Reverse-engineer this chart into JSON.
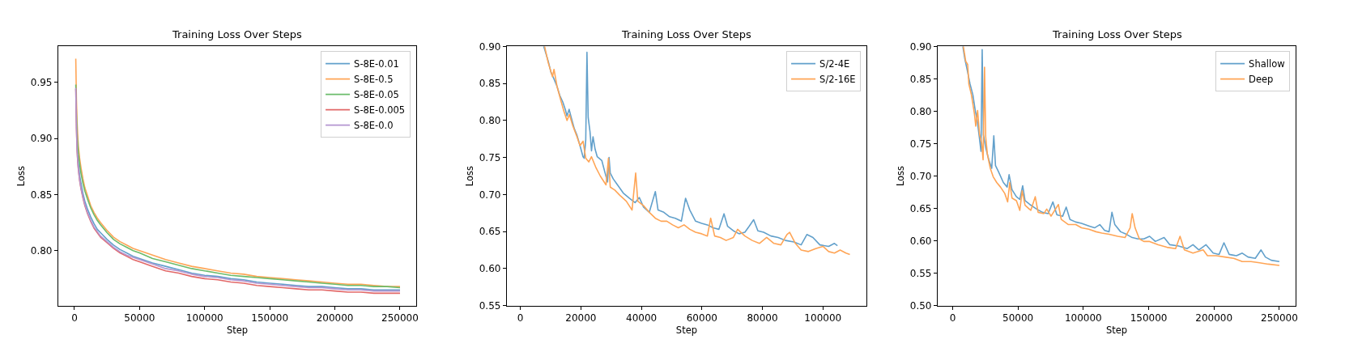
{
  "chart_data": [
    {
      "type": "line",
      "title": "Training Loss Over Steps",
      "xlabel": "Step",
      "ylabel": "Loss",
      "legend": "top right",
      "xlim": [
        -12500,
        262500
      ],
      "ylim": [
        0.751,
        0.982
      ],
      "xticks": [
        0,
        50000,
        100000,
        150000,
        200000,
        250000
      ],
      "yticks": [
        {
          "value": 0.8,
          "label": "0.80"
        },
        0.85,
        {
          "value": 0.9,
          "label": "0.90"
        },
        0.95
      ],
      "x": [
        1000,
        1500,
        2000,
        2500,
        3000,
        4000,
        5000,
        6500,
        8000,
        10000,
        12500,
        15000,
        17500,
        20000,
        25000,
        30000,
        35000,
        40000,
        45000,
        50000,
        60000,
        70000,
        80000,
        90000,
        100000,
        110000,
        120000,
        130000,
        140000,
        150000,
        160000,
        170000,
        180000,
        190000,
        200000,
        210000,
        220000,
        230000,
        240000,
        250000
      ],
      "series": [
        {
          "name": "S-8E-0.01",
          "color": "#62a0cb",
          "values": [
            null,
            null,
            null,
            0.885,
            0.878,
            0.867,
            0.86,
            0.851,
            0.844,
            0.837,
            0.83,
            0.824,
            0.819,
            0.816,
            0.81,
            0.805,
            0.801,
            0.798,
            0.795,
            0.793,
            0.789,
            0.786,
            0.783,
            0.78,
            0.778,
            0.777,
            0.775,
            0.774,
            0.772,
            0.771,
            0.77,
            0.769,
            0.768,
            0.768,
            0.767,
            0.766,
            0.766,
            0.765,
            0.765,
            0.765
          ]
        },
        {
          "name": "S-8E-0.5",
          "color": "#ffa556",
          "values": [
            0.971,
            0.935,
            0.915,
            0.902,
            0.893,
            0.882,
            0.874,
            0.864,
            0.856,
            0.849,
            0.84,
            0.834,
            0.829,
            0.825,
            0.818,
            0.812,
            0.808,
            0.805,
            0.802,
            0.8,
            0.796,
            0.792,
            0.789,
            0.786,
            0.784,
            0.782,
            0.78,
            0.779,
            0.777,
            0.776,
            0.775,
            0.774,
            0.773,
            0.772,
            0.771,
            0.77,
            0.77,
            0.769,
            0.768,
            0.768
          ]
        },
        {
          "name": "S-8E-0.05",
          "color": "#6bbc6b",
          "values": [
            0.948,
            0.922,
            0.905,
            0.895,
            0.887,
            0.877,
            0.869,
            0.86,
            0.853,
            0.846,
            0.838,
            0.832,
            0.827,
            0.823,
            0.816,
            0.81,
            0.806,
            0.803,
            0.8,
            0.798,
            0.793,
            0.79,
            0.787,
            0.784,
            0.782,
            0.78,
            0.778,
            0.777,
            0.776,
            0.775,
            0.774,
            0.773,
            0.772,
            0.771,
            0.77,
            0.769,
            0.769,
            0.768,
            0.768,
            0.767
          ]
        },
        {
          "name": "S-8E-0.005",
          "color": "#e26868",
          "values": [
            0.944,
            0.909,
            0.889,
            0.879,
            0.872,
            0.862,
            0.855,
            0.847,
            0.84,
            0.833,
            0.826,
            0.82,
            0.816,
            0.812,
            0.807,
            0.802,
            0.798,
            0.795,
            0.792,
            0.79,
            0.786,
            0.782,
            0.78,
            0.777,
            0.775,
            0.774,
            0.772,
            0.771,
            0.769,
            0.768,
            0.767,
            0.766,
            0.765,
            0.765,
            0.764,
            0.763,
            0.763,
            0.762,
            0.762,
            0.762
          ]
        },
        {
          "name": "S-8E-0.0",
          "color": "#b495d1",
          "values": [
            0.945,
            0.91,
            0.89,
            0.88,
            0.873,
            0.863,
            0.856,
            0.848,
            0.841,
            0.834,
            0.827,
            0.821,
            0.817,
            0.813,
            0.808,
            0.803,
            0.799,
            0.796,
            0.794,
            0.792,
            0.788,
            0.784,
            0.782,
            0.779,
            0.777,
            0.776,
            0.774,
            0.773,
            0.771,
            0.77,
            0.769,
            0.768,
            0.767,
            0.767,
            0.766,
            0.765,
            0.765,
            0.764,
            0.764,
            0.764
          ]
        }
      ]
    },
    {
      "type": "line",
      "title": "Training Loss Over Steps",
      "xlabel": "Step",
      "ylabel": "Loss",
      "legend": "top right",
      "xlim": [
        -4500,
        114400
      ],
      "ylim": [
        0.55,
        0.9
      ],
      "xticks": [
        0,
        20000,
        40000,
        60000,
        80000,
        100000
      ],
      "yticks": [
        0.55,
        {
          "value": 0.6,
          "label": "0.60"
        },
        0.65,
        {
          "value": 0.7,
          "label": "0.70"
        },
        0.75,
        {
          "value": 0.8,
          "label": "0.80"
        },
        0.85,
        {
          "value": 0.9,
          "label": "0.90"
        }
      ],
      "series": [
        {
          "name": "S/2-4E",
          "color": "#62a0cb",
          "x": [
            7700,
            9200,
            10100,
            11100,
            12100,
            13000,
            14000,
            14900,
            15400,
            16100,
            16800,
            17800,
            18700,
            19700,
            20700,
            21100,
            21600,
            22000,
            22400,
            23000,
            23500,
            24000,
            24700,
            25400,
            26900,
            27800,
            28800,
            29300,
            29700,
            30700,
            32100,
            34000,
            36000,
            37900,
            39300,
            40700,
            42600,
            44600,
            45500,
            47400,
            49300,
            51200,
            53200,
            54600,
            56000,
            57900,
            59900,
            61800,
            63700,
            65600,
            67300,
            68500,
            70400,
            72300,
            74200,
            75600,
            77100,
            78500,
            80400,
            82800,
            85200,
            87600,
            90400,
            92800,
            94700,
            96700,
            99000,
            101900,
            103800,
            104800
          ],
          "values": [
            0.9,
            0.88,
            0.865,
            0.856,
            0.846,
            0.834,
            0.825,
            0.814,
            0.806,
            0.815,
            0.804,
            0.789,
            0.78,
            0.766,
            0.751,
            0.749,
            0.774,
            0.892,
            0.804,
            0.785,
            0.759,
            0.778,
            0.761,
            0.751,
            0.746,
            0.732,
            0.717,
            0.75,
            0.729,
            0.721,
            0.713,
            0.702,
            0.695,
            0.689,
            0.696,
            0.683,
            0.676,
            0.704,
            0.679,
            0.676,
            0.67,
            0.668,
            0.664,
            0.695,
            0.679,
            0.664,
            0.661,
            0.659,
            0.655,
            0.653,
            0.674,
            0.657,
            0.651,
            0.647,
            0.649,
            0.657,
            0.666,
            0.651,
            0.649,
            0.644,
            0.642,
            0.638,
            0.636,
            0.632,
            0.646,
            0.642,
            0.632,
            0.63,
            0.634,
            0.631
          ]
        },
        {
          "name": "S/2-16E",
          "color": "#ffa556",
          "x": [
            8000,
            9200,
            10600,
            11100,
            12100,
            13500,
            14400,
            15400,
            16200,
            17300,
            18700,
            19700,
            20700,
            21600,
            22600,
            23500,
            25000,
            26400,
            28300,
            29100,
            29700,
            31200,
            33100,
            35000,
            36900,
            38100,
            38800,
            40700,
            42600,
            44600,
            46500,
            48400,
            50300,
            52200,
            54100,
            56000,
            57900,
            59900,
            61800,
            62900,
            64200,
            66100,
            68000,
            70400,
            71800,
            74200,
            76600,
            79000,
            81400,
            83800,
            86100,
            88100,
            89000,
            90900,
            92800,
            95200,
            97600,
            100000,
            101900,
            103800,
            105700,
            107600,
            108900
          ],
          "values": [
            0.9,
            0.878,
            0.859,
            0.869,
            0.846,
            0.825,
            0.812,
            0.8,
            0.808,
            0.793,
            0.778,
            0.766,
            0.772,
            0.749,
            0.744,
            0.751,
            0.736,
            0.725,
            0.713,
            0.749,
            0.71,
            0.706,
            0.698,
            0.691,
            0.679,
            0.729,
            0.691,
            0.685,
            0.676,
            0.668,
            0.664,
            0.664,
            0.659,
            0.655,
            0.659,
            0.653,
            0.649,
            0.647,
            0.644,
            0.668,
            0.644,
            0.642,
            0.638,
            0.642,
            0.653,
            0.644,
            0.638,
            0.634,
            0.642,
            0.634,
            0.632,
            0.646,
            0.649,
            0.634,
            0.625,
            0.623,
            0.627,
            0.63,
            0.623,
            0.621,
            0.625,
            0.621,
            0.619
          ]
        }
      ]
    },
    {
      "type": "line",
      "title": "Training Loss Over Steps",
      "xlabel": "Step",
      "ylabel": "Loss",
      "legend": "top right",
      "xlim": [
        -11500,
        262500
      ],
      "ylim": [
        0.5,
        0.9
      ],
      "xticks": [
        0,
        50000,
        100000,
        150000,
        200000,
        250000
      ],
      "yticks": [
        {
          "value": 0.5,
          "label": "0.50"
        },
        0.55,
        {
          "value": 0.6,
          "label": "0.60"
        },
        0.65,
        {
          "value": 0.7,
          "label": "0.70"
        },
        0.75,
        {
          "value": 0.8,
          "label": "0.80"
        },
        0.85,
        {
          "value": 0.9,
          "label": "0.90"
        }
      ],
      "series": [
        {
          "name": "Shallow",
          "color": "#62a0cb",
          "x": [
            7800,
            9300,
            11100,
            13300,
            15500,
            17300,
            18800,
            20400,
            21700,
            22600,
            23500,
            25500,
            27700,
            29900,
            31500,
            32800,
            35000,
            38800,
            41700,
            43200,
            45400,
            48800,
            51400,
            53600,
            55400,
            59800,
            64300,
            68700,
            73100,
            76700,
            79800,
            84200,
            86900,
            89800,
            94200,
            98600,
            104200,
            108600,
            112600,
            116300,
            119700,
            121900,
            124100,
            128500,
            133000,
            137400,
            141800,
            146300,
            150700,
            155100,
            161800,
            166200,
            172900,
            179500,
            183900,
            188400,
            193900,
            199400,
            203900,
            207600,
            211600,
            217200,
            221600,
            226000,
            231600,
            236000,
            239300,
            243800,
            250000
          ],
          "values": [
            0.9,
            0.881,
            0.864,
            0.842,
            0.825,
            0.801,
            0.786,
            0.76,
            0.738,
            0.895,
            0.764,
            0.742,
            0.725,
            0.712,
            0.762,
            0.716,
            0.707,
            0.69,
            0.683,
            0.702,
            0.679,
            0.668,
            0.664,
            0.685,
            0.662,
            0.655,
            0.649,
            0.644,
            0.642,
            0.66,
            0.64,
            0.638,
            0.652,
            0.633,
            0.629,
            0.627,
            0.623,
            0.62,
            0.625,
            0.616,
            0.614,
            0.644,
            0.625,
            0.614,
            0.61,
            0.605,
            0.603,
            0.603,
            0.607,
            0.599,
            0.605,
            0.594,
            0.592,
            0.588,
            0.594,
            0.586,
            0.594,
            0.581,
            0.579,
            0.597,
            0.579,
            0.577,
            0.581,
            0.575,
            0.573,
            0.586,
            0.575,
            0.57,
            0.568
          ]
        },
        {
          "name": "Deep",
          "color": "#ffa556",
          "x": [
            8200,
            10000,
            11500,
            12400,
            14400,
            16600,
            17700,
            19100,
            20600,
            22200,
            23300,
            24400,
            25300,
            26600,
            28800,
            31000,
            33700,
            36600,
            39900,
            42100,
            43700,
            45400,
            48800,
            51400,
            53200,
            55400,
            59800,
            63200,
            65400,
            69800,
            72000,
            75300,
            80900,
            83100,
            88600,
            94200,
            98600,
            104200,
            109700,
            114100,
            119700,
            126300,
            131900,
            135800,
            137400,
            139600,
            142900,
            146300,
            150700,
            157300,
            164000,
            170600,
            174000,
            177300,
            183900,
            191700,
            195000,
            201700,
            208300,
            215000,
            221600,
            228300,
            234900,
            241500,
            250000
          ],
          "values": [
            0.9,
            0.877,
            0.872,
            0.842,
            0.825,
            0.797,
            0.777,
            0.801,
            0.764,
            0.751,
            0.725,
            0.868,
            0.76,
            0.733,
            0.712,
            0.699,
            0.69,
            0.683,
            0.673,
            0.66,
            0.69,
            0.666,
            0.662,
            0.647,
            0.677,
            0.655,
            0.647,
            0.668,
            0.644,
            0.642,
            0.649,
            0.638,
            0.656,
            0.633,
            0.625,
            0.625,
            0.62,
            0.618,
            0.614,
            0.612,
            0.61,
            0.607,
            0.605,
            0.62,
            0.642,
            0.62,
            0.603,
            0.599,
            0.599,
            0.594,
            0.59,
            0.588,
            0.607,
            0.586,
            0.581,
            0.586,
            0.577,
            0.577,
            0.575,
            0.573,
            0.568,
            0.568,
            0.566,
            0.564,
            0.562
          ]
        }
      ]
    }
  ]
}
